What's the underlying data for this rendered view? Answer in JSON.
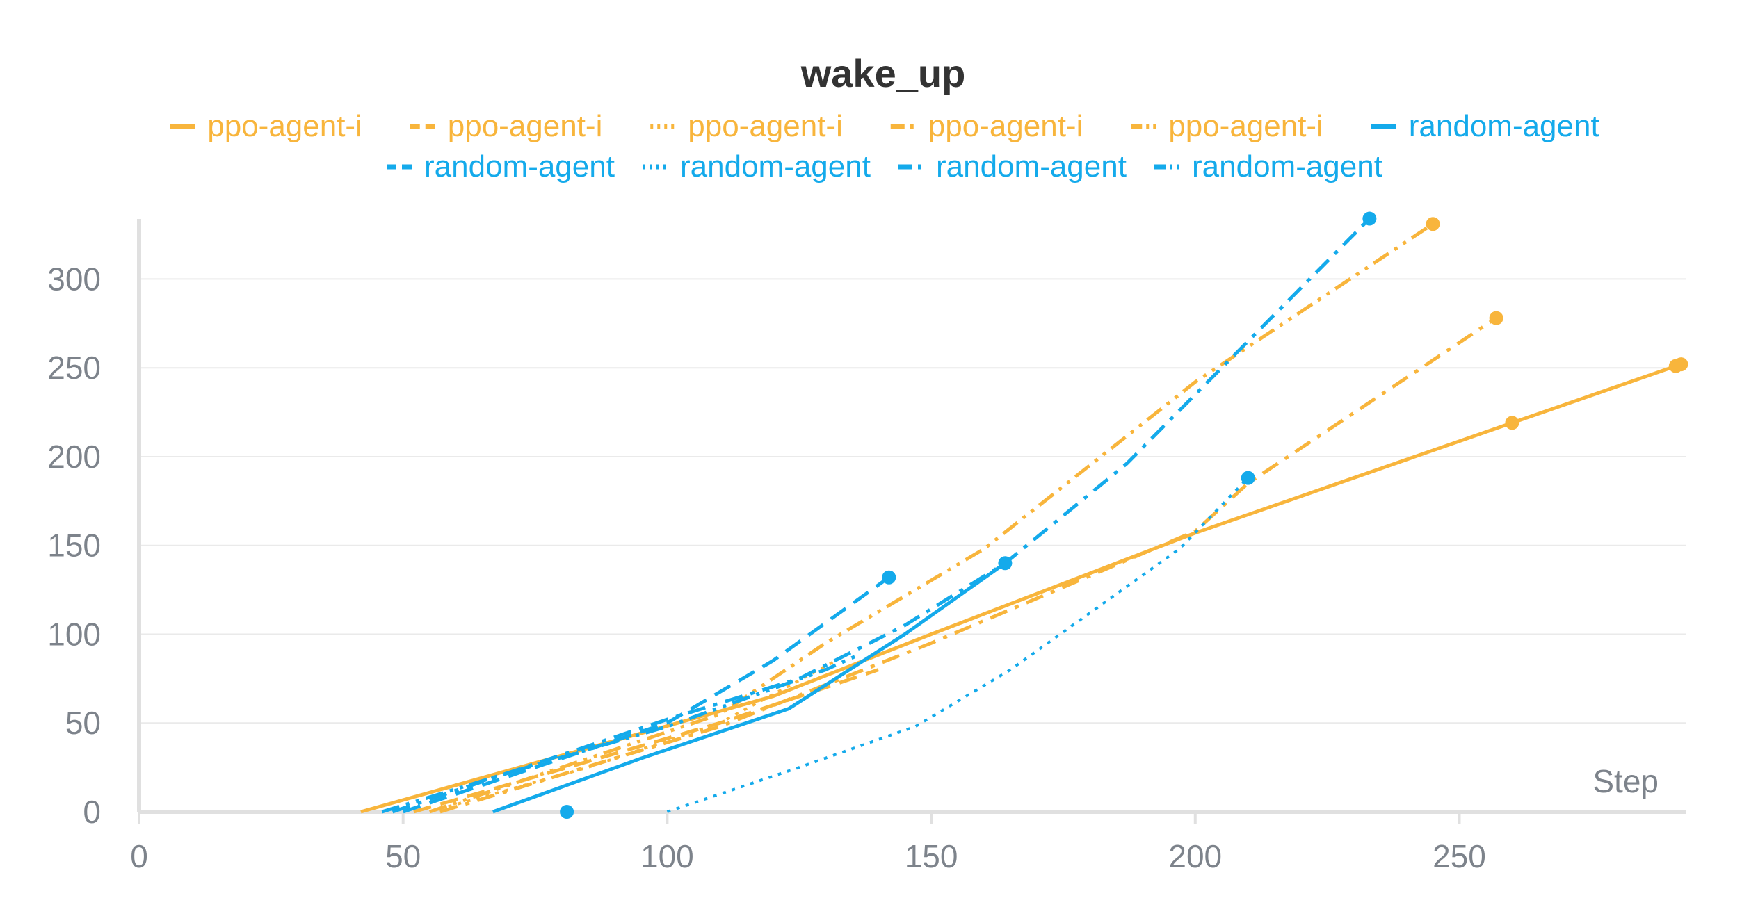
{
  "colors": {
    "ppo": "#f8b53c",
    "random": "#14aaeb",
    "grid": "#eaeaea",
    "axis": "#e0e0e0",
    "tick_text": "#7d838b",
    "title_text": "#333333"
  },
  "chart_data": {
    "type": "line",
    "title": "wake_up",
    "xlabel": "Step",
    "ylabel": "",
    "xlim": [
      0,
      293
    ],
    "ylim": [
      0,
      335
    ],
    "x_ticks": [
      "0",
      "50",
      "100",
      "150",
      "200",
      "250"
    ],
    "y_ticks": [
      "0",
      "50",
      "100",
      "150",
      "200",
      "250",
      "300"
    ],
    "grid": true,
    "legend_position": "top",
    "series": [
      {
        "name": "ppo-agent-i",
        "color": "#f8b53c",
        "dash": "solid",
        "points": [
          [
            42,
            0
          ],
          [
            60,
            15
          ],
          [
            90,
            40
          ],
          [
            120,
            65
          ],
          [
            150,
            100
          ],
          [
            200,
            157
          ],
          [
            260,
            219
          ],
          [
            292,
            252
          ]
        ],
        "end_marker": [
          [
            260,
            219
          ],
          [
            291,
            251
          ],
          [
            292,
            252
          ]
        ]
      },
      {
        "name": "ppo-agent-i",
        "color": "#f8b53c",
        "dash": "dashed",
        "points": [
          [
            52,
            0
          ],
          [
            80,
            24
          ],
          [
            110,
            50
          ],
          [
            140,
            80
          ]
        ],
        "end_marker": []
      },
      {
        "name": "ppo-agent-i",
        "color": "#f8b53c",
        "dash": "dotted",
        "points": [
          [
            55,
            0
          ],
          [
            85,
            25
          ],
          [
            110,
            50
          ],
          [
            135,
            90
          ]
        ],
        "end_marker": []
      },
      {
        "name": "ppo-agent-i",
        "color": "#f8b53c",
        "dash": "dashdot",
        "points": [
          [
            57,
            0
          ],
          [
            90,
            30
          ],
          [
            110,
            48
          ],
          [
            150,
            95
          ],
          [
            200,
            158
          ],
          [
            210,
            185
          ],
          [
            257,
            278
          ]
        ],
        "end_marker": [
          [
            257,
            278
          ]
        ]
      },
      {
        "name": "ppo-agent-i",
        "color": "#f8b53c",
        "dash": "dashdotdot",
        "points": [
          [
            55,
            0
          ],
          [
            80,
            25
          ],
          [
            110,
            55
          ],
          [
            130,
            95
          ],
          [
            160,
            148
          ],
          [
            200,
            242
          ],
          [
            245,
            331
          ]
        ],
        "end_marker": [
          [
            245,
            331
          ]
        ]
      },
      {
        "name": "random-agent",
        "color": "#14aaeb",
        "dash": "solid",
        "points": [
          [
            67,
            0
          ],
          [
            95,
            30
          ],
          [
            123,
            58
          ],
          [
            145,
            100
          ],
          [
            164,
            140
          ]
        ],
        "end_marker": [
          [
            164,
            140
          ]
        ]
      },
      {
        "name": "random-agent",
        "color": "#14aaeb",
        "dash": "dashed",
        "points": [
          [
            50,
            0
          ],
          [
            75,
            25
          ],
          [
            100,
            50
          ],
          [
            120,
            85
          ],
          [
            142,
            132
          ]
        ],
        "end_marker": [
          [
            142,
            132
          ]
        ]
      },
      {
        "name": "random-agent",
        "color": "#14aaeb",
        "dash": "dotted",
        "points": [
          [
            100,
            0
          ],
          [
            125,
            25
          ],
          [
            147,
            48
          ],
          [
            165,
            80
          ],
          [
            197,
            148
          ],
          [
            210,
            188
          ]
        ],
        "end_marker": [
          [
            81,
            0
          ],
          [
            210,
            188
          ]
        ]
      },
      {
        "name": "random-agent",
        "color": "#14aaeb",
        "dash": "dashdot",
        "points": [
          [
            48,
            0
          ],
          [
            75,
            27
          ],
          [
            100,
            52
          ],
          [
            125,
            75
          ],
          [
            145,
            105
          ],
          [
            164,
            140
          ],
          [
            187,
            196
          ],
          [
            210,
            265
          ],
          [
            233,
            334
          ]
        ],
        "end_marker": [
          [
            233,
            334
          ]
        ]
      },
      {
        "name": "random-agent",
        "color": "#14aaeb",
        "dash": "dashdotdot",
        "points": [
          [
            46,
            0
          ],
          [
            70,
            22
          ],
          [
            100,
            48
          ],
          [
            130,
            80
          ],
          [
            136,
            88
          ]
        ],
        "end_marker": []
      }
    ]
  }
}
